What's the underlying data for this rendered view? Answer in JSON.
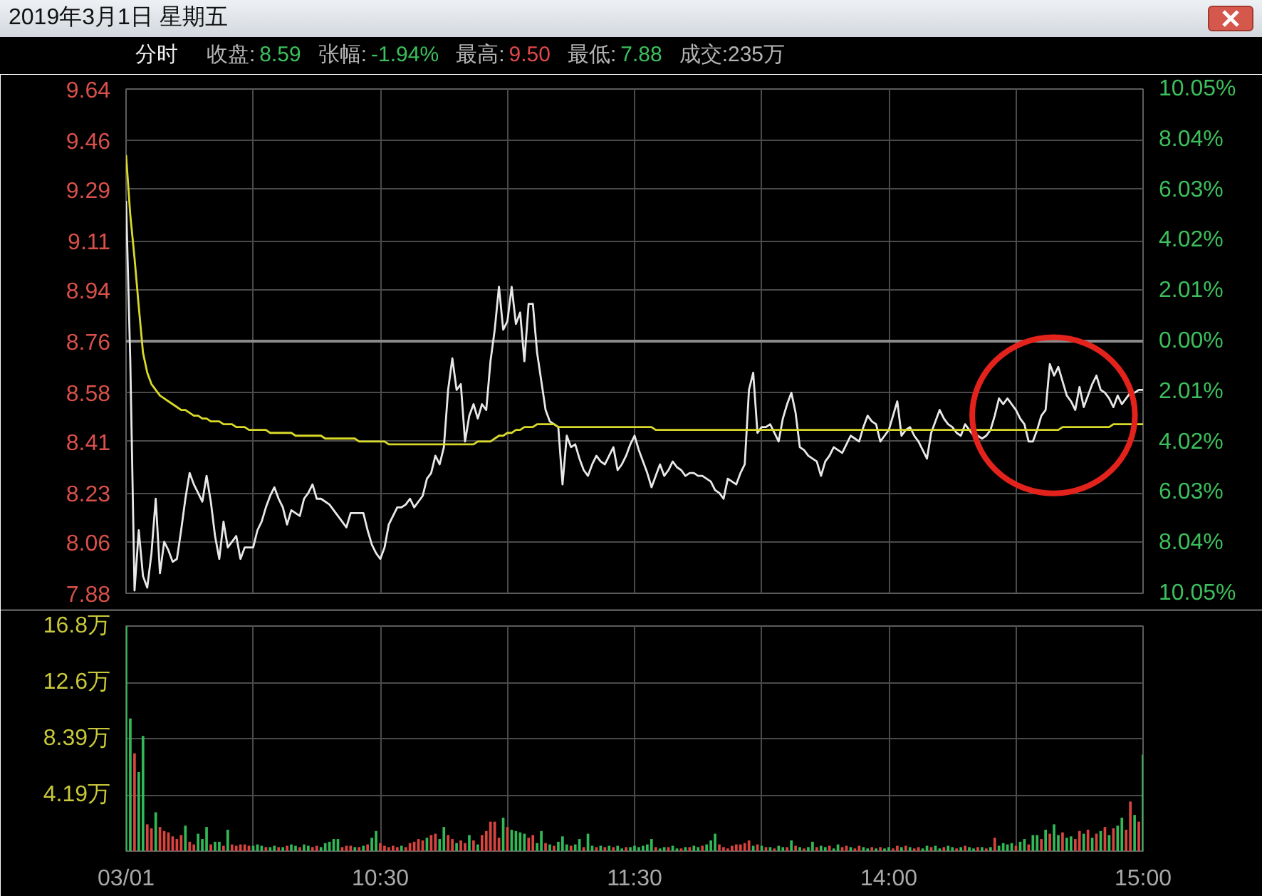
{
  "chart_data": [
    {
      "type": "line",
      "title": "2019年3月1日 星期五",
      "annotations": [
        "分时",
        "收盘:",
        "8.59",
        "张幅:",
        "-1.94%",
        "最高:",
        "9.50",
        "最低:",
        "7.88",
        "成交:235万"
      ],
      "categories": [
        null,
        null,
        null,
        null,
        null,
        null,
        null,
        null,
        null,
        null,
        null,
        null,
        null,
        null,
        null,
        null,
        null,
        null,
        null,
        null,
        null,
        null,
        null,
        null,
        null,
        null,
        null,
        null,
        null,
        null,
        null,
        null,
        null,
        null,
        null,
        null,
        null,
        null,
        null,
        null,
        null,
        null,
        null,
        null,
        null,
        null,
        null,
        null,
        null,
        null,
        null,
        null,
        null,
        null,
        null,
        null,
        null,
        null,
        null,
        null,
        null,
        null,
        null,
        null,
        null,
        null,
        null,
        null,
        null,
        null,
        null,
        null,
        null,
        null,
        null,
        null,
        null,
        null,
        null,
        null,
        null,
        null,
        null,
        null,
        null,
        null,
        null,
        null,
        null,
        null,
        null,
        null,
        null,
        null,
        null,
        null,
        null,
        null,
        null,
        null,
        null,
        null,
        null,
        null,
        null,
        null,
        null,
        null,
        null,
        null,
        null,
        null,
        null,
        null,
        null,
        null,
        null,
        null,
        null,
        null,
        null,
        null,
        null,
        null,
        null,
        null,
        null,
        null,
        null,
        null,
        null,
        null,
        null,
        null,
        null,
        null,
        null,
        null,
        null,
        null,
        null,
        null,
        null,
        null,
        null,
        null,
        null,
        null,
        null,
        null,
        null,
        null,
        null,
        null,
        null,
        null,
        null,
        null,
        null,
        null,
        null,
        null,
        null,
        null,
        null,
        null,
        null,
        null,
        null,
        null,
        null,
        null,
        null,
        null,
        null,
        null,
        null,
        null,
        null,
        null,
        null,
        null,
        null,
        null,
        null,
        null,
        null,
        null,
        null,
        null,
        null,
        null,
        null,
        null,
        null,
        null,
        null,
        null,
        null,
        null,
        null,
        null,
        null,
        null,
        null,
        null,
        null,
        null,
        null,
        null,
        null,
        null,
        null,
        null,
        null,
        null,
        null,
        null,
        null,
        null,
        null,
        null,
        null,
        null,
        null,
        null,
        null,
        null,
        null,
        null,
        null,
        null,
        null,
        null,
        null,
        null,
        null,
        null,
        null,
        null,
        null
      ],
      "series": [
        {
          "color": "#e8e8e8",
          "values": [
            9.25,
            8.69,
            7.89,
            8.1,
            7.94,
            7.9,
            8.02,
            8.21,
            7.95,
            8.06,
            8.03,
            7.99,
            8.0,
            8.1,
            8.21,
            8.3,
            8.26,
            8.23,
            8.2,
            8.29,
            8.2,
            8.08,
            8.0,
            8.13,
            8.04,
            8.06,
            8.08,
            8.0,
            8.04,
            8.04,
            8.04,
            8.1,
            8.13,
            8.18,
            8.22,
            8.25,
            8.21,
            8.18,
            8.12,
            8.17,
            8.16,
            8.15,
            8.21,
            8.23,
            8.26,
            8.21,
            8.21,
            8.2,
            8.19,
            8.17,
            8.15,
            8.13,
            8.11,
            8.16,
            8.16,
            8.16,
            8.16,
            8.1,
            8.05,
            8.02,
            8.0,
            8.04,
            8.12,
            8.15,
            8.18,
            8.18,
            8.19,
            8.21,
            8.18,
            8.2,
            8.22,
            8.28,
            8.3,
            8.36,
            8.33,
            8.39,
            8.59,
            8.7,
            8.59,
            8.61,
            8.41,
            8.5,
            8.54,
            8.49,
            8.54,
            8.52,
            8.69,
            8.8,
            8.95,
            8.8,
            8.83,
            8.95,
            8.82,
            8.86,
            8.69,
            8.89,
            8.89,
            8.72,
            8.62,
            8.52,
            8.48,
            8.47,
            8.46,
            8.26,
            8.43,
            8.39,
            8.4,
            8.35,
            8.31,
            8.29,
            8.33,
            8.36,
            8.34,
            8.33,
            8.36,
            8.39,
            8.31,
            8.33,
            8.36,
            8.4,
            8.43,
            8.38,
            8.34,
            8.3,
            8.25,
            8.29,
            8.33,
            8.29,
            8.31,
            8.34,
            8.32,
            8.31,
            8.29,
            8.3,
            8.3,
            8.29,
            8.29,
            8.28,
            8.27,
            8.24,
            8.23,
            8.21,
            8.28,
            8.27,
            8.26,
            8.3,
            8.33,
            8.59,
            8.65,
            8.44,
            8.46,
            8.46,
            8.47,
            8.44,
            8.41,
            8.49,
            8.54,
            8.58,
            8.51,
            8.39,
            8.38,
            8.36,
            8.35,
            8.34,
            8.29,
            8.34,
            8.36,
            8.39,
            8.38,
            8.37,
            8.4,
            8.43,
            8.42,
            8.41,
            8.46,
            8.5,
            8.48,
            8.47,
            8.41,
            8.43,
            8.45,
            8.5,
            8.55,
            8.43,
            8.45,
            8.46,
            8.43,
            8.41,
            8.38,
            8.35,
            8.44,
            8.48,
            8.52,
            8.49,
            8.47,
            8.46,
            8.44,
            8.43,
            8.47,
            8.45,
            8.43,
            8.43,
            8.42,
            8.43,
            8.45,
            8.5,
            8.56,
            8.54,
            8.56,
            8.54,
            8.52,
            8.49,
            8.47,
            8.41,
            8.41,
            8.45,
            8.5,
            8.52,
            8.68,
            8.64,
            8.67,
            8.62,
            8.57,
            8.55,
            8.52,
            8.6,
            8.53,
            8.57,
            8.61,
            8.64,
            8.59,
            8.58,
            8.56,
            8.53,
            8.57,
            8.54,
            8.56,
            8.58,
            8.58,
            8.59,
            8.59
          ]
        },
        {
          "color": "#d9d92a",
          "values": [
            9.41,
            9.2,
            9.05,
            8.88,
            8.72,
            8.65,
            8.61,
            8.59,
            8.57,
            8.56,
            8.55,
            8.54,
            8.53,
            8.52,
            8.52,
            8.51,
            8.5,
            8.5,
            8.49,
            8.49,
            8.48,
            8.48,
            8.48,
            8.47,
            8.47,
            8.47,
            8.46,
            8.46,
            8.46,
            8.45,
            8.45,
            8.45,
            8.45,
            8.45,
            8.44,
            8.44,
            8.44,
            8.44,
            8.44,
            8.44,
            8.43,
            8.43,
            8.43,
            8.43,
            8.43,
            8.43,
            8.43,
            8.42,
            8.42,
            8.42,
            8.42,
            8.42,
            8.42,
            8.42,
            8.42,
            8.41,
            8.41,
            8.41,
            8.41,
            8.41,
            8.41,
            8.41,
            8.4,
            8.4,
            8.4,
            8.4,
            8.4,
            8.4,
            8.4,
            8.4,
            8.4,
            8.4,
            8.4,
            8.4,
            8.4,
            8.4,
            8.4,
            8.4,
            8.4,
            8.4,
            8.4,
            8.4,
            8.4,
            8.41,
            8.41,
            8.41,
            8.41,
            8.42,
            8.43,
            8.43,
            8.44,
            8.44,
            8.45,
            8.45,
            8.46,
            8.46,
            8.46,
            8.47,
            8.47,
            8.47,
            8.47,
            8.47,
            8.46,
            8.46,
            8.46,
            8.46,
            8.46,
            8.46,
            8.46,
            8.46,
            8.46,
            8.46,
            8.46,
            8.46,
            8.46,
            8.46,
            8.46,
            8.46,
            8.46,
            8.46,
            8.46,
            8.46,
            8.46,
            8.46,
            8.46,
            8.45,
            8.45,
            8.45,
            8.45,
            8.45,
            8.45,
            8.45,
            8.45,
            8.45,
            8.45,
            8.45,
            8.45,
            8.45,
            8.45,
            8.45,
            8.45,
            8.45,
            8.45,
            8.45,
            8.45,
            8.45,
            8.45,
            8.45,
            8.45,
            8.45,
            8.45,
            8.45,
            8.45,
            8.45,
            8.45,
            8.45,
            8.45,
            8.45,
            8.45,
            8.45,
            8.45,
            8.45,
            8.45,
            8.45,
            8.45,
            8.45,
            8.45,
            8.45,
            8.45,
            8.45,
            8.45,
            8.45,
            8.45,
            8.45,
            8.45,
            8.45,
            8.45,
            8.45,
            8.45,
            8.45,
            8.45,
            8.45,
            8.45,
            8.45,
            8.45,
            8.45,
            8.45,
            8.45,
            8.45,
            8.45,
            8.45,
            8.45,
            8.45,
            8.45,
            8.45,
            8.45,
            8.45,
            8.45,
            8.45,
            8.45,
            8.45,
            8.45,
            8.45,
            8.45,
            8.45,
            8.45,
            8.45,
            8.45,
            8.45,
            8.45,
            8.45,
            8.45,
            8.45,
            8.45,
            8.45,
            8.45,
            8.45,
            8.45,
            8.45,
            8.45,
            8.45,
            8.46,
            8.46,
            8.46,
            8.46,
            8.46,
            8.46,
            8.46,
            8.46,
            8.46,
            8.46,
            8.46,
            8.46,
            8.47,
            8.47,
            8.47,
            8.47,
            8.47,
            8.47,
            8.47,
            8.47
          ]
        }
      ],
      "ylim": [
        7.88,
        9.64
      ],
      "yticks": [
        7.88,
        8.06,
        8.23,
        8.41,
        8.58,
        8.76,
        8.94,
        9.11,
        9.29,
        9.46,
        9.64
      ],
      "y2lim": [
        -10.05,
        10.05
      ],
      "y2ticks": [
        {
          "value": 10.05,
          "label": "10.05%"
        },
        {
          "value": 8.04,
          "label": "8.04%"
        },
        {
          "value": 6.03,
          "label": "6.03%"
        },
        {
          "value": 4.02,
          "label": "4.02%"
        },
        {
          "value": 2.01,
          "label": "2.01%"
        },
        {
          "value": 0,
          "label": "0.00%"
        },
        {
          "value": -2.01,
          "label": "2.01%"
        },
        {
          "value": -4.02,
          "label": "4.02%"
        },
        {
          "value": -6.03,
          "label": "6.03%"
        },
        {
          "value": -8.04,
          "label": "8.04%"
        },
        {
          "value": -10.05,
          "label": "10.05%"
        }
      ],
      "ref_lines": [
        {
          "axis": "y",
          "value": 8.76,
          "color": "#8a8a8a"
        }
      ],
      "grid": true,
      "tick_labels": "y"
    },
    {
      "type": "bar",
      "categories": [
        "03/01",
        null,
        null,
        null,
        null,
        null,
        null,
        null,
        null,
        null,
        null,
        null,
        null,
        null,
        null,
        null,
        null,
        null,
        null,
        null,
        null,
        null,
        null,
        null,
        null,
        null,
        null,
        null,
        null,
        null,
        null,
        null,
        null,
        null,
        null,
        null,
        null,
        null,
        null,
        null,
        null,
        null,
        null,
        null,
        null,
        null,
        null,
        null,
        null,
        null,
        null,
        null,
        null,
        null,
        null,
        null,
        null,
        null,
        null,
        null,
        "10:30",
        null,
        null,
        null,
        null,
        null,
        null,
        null,
        null,
        null,
        null,
        null,
        null,
        null,
        null,
        null,
        null,
        null,
        null,
        null,
        null,
        null,
        null,
        null,
        null,
        null,
        null,
        null,
        null,
        null,
        null,
        null,
        null,
        null,
        null,
        null,
        null,
        null,
        null,
        null,
        null,
        null,
        null,
        null,
        null,
        null,
        null,
        null,
        null,
        null,
        null,
        null,
        null,
        null,
        null,
        null,
        null,
        null,
        null,
        null,
        "11:30",
        null,
        null,
        null,
        null,
        null,
        null,
        null,
        null,
        null,
        null,
        null,
        null,
        null,
        null,
        null,
        null,
        null,
        null,
        null,
        null,
        null,
        null,
        null,
        null,
        null,
        null,
        null,
        null,
        null,
        null,
        null,
        null,
        null,
        null,
        null,
        null,
        null,
        null,
        null,
        null,
        null,
        null,
        null,
        null,
        null,
        null,
        null,
        null,
        null,
        null,
        null,
        null,
        null,
        null,
        null,
        null,
        null,
        null,
        null,
        "14:00",
        null,
        null,
        null,
        null,
        null,
        null,
        null,
        null,
        null,
        null,
        null,
        null,
        null,
        null,
        null,
        null,
        null,
        null,
        null,
        null,
        null,
        null,
        null,
        null,
        null,
        null,
        null,
        null,
        null,
        null,
        null,
        null,
        null,
        null,
        null,
        null,
        null,
        null,
        null,
        null,
        null,
        null,
        null,
        null,
        null,
        null,
        null,
        null,
        null,
        null,
        null,
        null,
        null,
        null,
        null,
        null,
        null,
        null,
        null,
        "15:00"
      ],
      "values": [
        16.8,
        9.9,
        7.3,
        5.9,
        8.6,
        2.0,
        1.7,
        2.9,
        1.8,
        1.5,
        1.4,
        1.1,
        0.9,
        1.2,
        1.9,
        0.7,
        0.5,
        1.3,
        0.9,
        1.8,
        0.5,
        0.7,
        0.7,
        0.4,
        1.6,
        0.5,
        0.4,
        0.5,
        0.5,
        0.4,
        0.4,
        0.5,
        0.4,
        0.3,
        0.3,
        0.4,
        0.3,
        0.3,
        0.4,
        0.5,
        0.4,
        0.3,
        0.5,
        0.4,
        0.3,
        0.4,
        0.3,
        0.6,
        0.7,
        0.9,
        0.9,
        0.3,
        0.4,
        0.4,
        0.3,
        0.3,
        0.4,
        0.5,
        1.0,
        1.5,
        0.6,
        0.4,
        0.3,
        0.4,
        0.3,
        0.4,
        0.3,
        0.6,
        0.7,
        0.9,
        0.8,
        1.0,
        1.2,
        1.3,
        0.9,
        1.8,
        1.2,
        0.9,
        0.6,
        0.8,
        0.6,
        1.2,
        0.8,
        0.5,
        1.2,
        1.5,
        2.2,
        2.2,
        1.0,
        2.5,
        1.8,
        1.6,
        1.5,
        1.4,
        1.3,
        1.0,
        1.2,
        0.6,
        1.5,
        0.6,
        0.5,
        0.4,
        0.7,
        1.1,
        0.5,
        0.4,
        0.5,
        0.9,
        0.3,
        1.3,
        0.4,
        0.3,
        0.4,
        0.3,
        0.4,
        0.3,
        0.4,
        0.2,
        0.3,
        0.3,
        0.4,
        0.3,
        0.4,
        0.5,
        0.9,
        0.3,
        0.2,
        0.3,
        0.3,
        0.4,
        0.2,
        0.2,
        0.3,
        0.3,
        0.4,
        0.3,
        0.4,
        0.5,
        0.8,
        1.3,
        0.5,
        0.3,
        0.2,
        0.4,
        0.5,
        0.5,
        0.6,
        0.8,
        0.4,
        0.5,
        0.4,
        0.3,
        0.3,
        0.2,
        0.4,
        0.3,
        0.3,
        0.8,
        0.4,
        0.3,
        0.2,
        0.3,
        0.7,
        0.3,
        0.4,
        0.3,
        0.4,
        0.2,
        0.5,
        0.3,
        0.4,
        0.3,
        0.2,
        0.4,
        0.3,
        0.2,
        0.3,
        0.2,
        0.3,
        0.2,
        0.3,
        0.2,
        0.4,
        0.3,
        0.4,
        0.3,
        0.2,
        0.3,
        0.2,
        0.4,
        0.3,
        0.4,
        0.2,
        0.3,
        0.4,
        0.3,
        0.2,
        0.3,
        0.4,
        0.3,
        0.2,
        0.3,
        0.3,
        0.2,
        0.3,
        1.0,
        0.4,
        0.6,
        0.5,
        0.6,
        0.4,
        0.7,
        0.9,
        0.5,
        1.2,
        1.2,
        0.9,
        1.6,
        1.3,
        2.0,
        1.2,
        1.4,
        1.0,
        1.1,
        0.9,
        1.5,
        1.3,
        1.6,
        1.0,
        1.3,
        1.5,
        1.8,
        1.2,
        1.7,
        1.9,
        2.5,
        1.6,
        3.7,
        2.7,
        2.2,
        7.2
      ],
      "colors": [
        "#33b857",
        "#33b857",
        "#d9443f",
        "#33b857",
        "#33b857",
        "#d9443f",
        "#d9443f",
        "#33b857",
        "#d9443f",
        "#d9443f",
        "#d9443f",
        "#d9443f",
        "#d9443f",
        "#d9443f",
        "#33b857",
        "#d9443f",
        "#d9443f",
        "#33b857",
        "#33b857",
        "#33b857",
        "#d9443f",
        "#33b857",
        "#33b857",
        "#d9443f",
        "#33b857",
        "#d9443f",
        "#d9443f",
        "#d9443f",
        "#d9443f",
        "#d9443f",
        "#33b857",
        "#33b857",
        "#33b857",
        "#d9443f",
        "#33b857",
        "#33b857",
        "#d9443f",
        "#33b857",
        "#d9443f",
        "#33b857",
        "#33b857",
        "#d9443f",
        "#33b857",
        "#33b857",
        "#d9443f",
        "#d9443f",
        "#33b857",
        "#33b857",
        "#33b857",
        "#33b857",
        "#33b857",
        "#d9443f",
        "#d9443f",
        "#d9443f",
        "#33b857",
        "#d9443f",
        "#33b857",
        "#d9443f",
        "#33b857",
        "#33b857",
        "#d9443f",
        "#d9443f",
        "#d9443f",
        "#d9443f",
        "#d9443f",
        "#33b857",
        "#d9443f",
        "#d9443f",
        "#d9443f",
        "#d9443f",
        "#d9443f",
        "#33b857",
        "#d9443f",
        "#d9443f",
        "#33b857",
        "#33b857",
        "#d9443f",
        "#d9443f",
        "#33b857",
        "#d9443f",
        "#d9443f",
        "#33b857",
        "#d9443f",
        "#33b857",
        "#d9443f",
        "#d9443f",
        "#d9443f",
        "#d9443f",
        "#d9443f",
        "#33b857",
        "#d9443f",
        "#33b857",
        "#33b857",
        "#33b857",
        "#33b857",
        "#d9443f",
        "#d9443f",
        "#33b857",
        "#33b857",
        "#d9443f",
        "#33b857",
        "#d9443f",
        "#33b857",
        "#33b857",
        "#33b857",
        "#d9443f",
        "#33b857",
        "#33b857",
        "#d9443f",
        "#33b857",
        "#33b857",
        "#d9443f",
        "#33b857",
        "#d9443f",
        "#33b857",
        "#d9443f",
        "#33b857",
        "#33b857",
        "#d9443f",
        "#33b857",
        "#33b857",
        "#33b857",
        "#33b857",
        "#33b857",
        "#33b857",
        "#d9443f",
        "#33b857",
        "#33b857",
        "#d9443f",
        "#33b857",
        "#33b857",
        "#d9443f",
        "#33b857",
        "#d9443f",
        "#33b857",
        "#33b857",
        "#d9443f",
        "#33b857",
        "#33b857",
        "#33b857",
        "#d9443f",
        "#d9443f",
        "#d9443f",
        "#d9443f",
        "#d9443f",
        "#d9443f",
        "#d9443f",
        "#d9443f",
        "#33b857",
        "#d9443f",
        "#33b857",
        "#d9443f",
        "#33b857",
        "#d9443f",
        "#33b857",
        "#33b857",
        "#d9443f",
        "#33b857",
        "#d9443f",
        "#33b857",
        "#d9443f",
        "#33b857",
        "#33b857",
        "#d9443f",
        "#33b857",
        "#33b857",
        "#d9443f",
        "#33b857",
        "#33b857",
        "#d9443f",
        "#d9443f",
        "#33b857",
        "#d9443f",
        "#d9443f",
        "#33b857",
        "#33b857",
        "#d9443f",
        "#33b857",
        "#d9443f",
        "#33b857",
        "#33b857",
        "#d9443f",
        "#d9443f",
        "#33b857",
        "#d9443f",
        "#33b857",
        "#d9443f",
        "#d9443f",
        "#33b857",
        "#33b857",
        "#d9443f",
        "#33b857",
        "#33b857",
        "#d9443f",
        "#33b857",
        "#33b857",
        "#d9443f",
        "#33b857",
        "#d9443f",
        "#33b857",
        "#33b857",
        "#d9443f",
        "#33b857",
        "#d9443f",
        "#33b857",
        "#d9443f",
        "#33b857",
        "#33b857",
        "#33b857",
        "#33b857",
        "#d9443f",
        "#33b857",
        "#33b857",
        "#d9443f",
        "#33b857",
        "#33b857",
        "#d9443f",
        "#33b857",
        "#d9443f",
        "#33b857",
        "#33b857",
        "#d9443f",
        "#33b857",
        "#33b857",
        "#d9443f",
        "#d9443f",
        "#33b857",
        "#d9443f",
        "#33b857",
        "#d9443f",
        "#33b857",
        "#d9443f",
        "#33b857",
        "#d9443f",
        "#33b857",
        "#33b857",
        "#d9443f",
        "#d9443f",
        "#33b857",
        "#d9443f",
        "#33b857"
      ],
      "ylim": [
        0,
        16.8
      ],
      "yticks": [
        {
          "value": 4.19,
          "label": "4.19万"
        },
        {
          "value": 8.39,
          "label": "8.39万"
        },
        {
          "value": 12.6,
          "label": "12.6万"
        },
        {
          "value": 16.8,
          "label": "16.8万"
        }
      ],
      "grid": true
    }
  ]
}
